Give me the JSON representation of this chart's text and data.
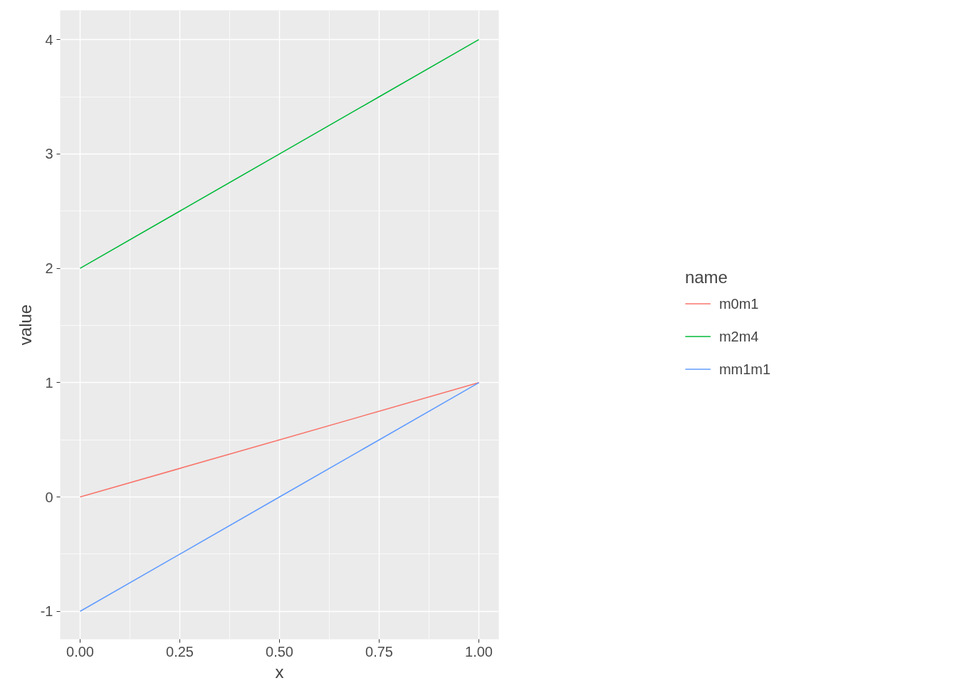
{
  "chart_data": {
    "type": "line",
    "xlabel": "x",
    "ylabel": "value",
    "legend_title": "name",
    "x": [
      0,
      0.25,
      0.5,
      0.75,
      1
    ],
    "series": [
      {
        "name": "m0m1",
        "color": "#f8766d",
        "values": [
          0,
          0.25,
          0.5,
          0.75,
          1
        ]
      },
      {
        "name": "m2m4",
        "color": "#00ba38",
        "values": [
          2,
          2.5,
          3,
          3.5,
          4
        ]
      },
      {
        "name": "mm1m1",
        "color": "#619cff",
        "values": [
          -1,
          -0.5,
          0,
          0.5,
          1
        ]
      }
    ],
    "xlim": [
      -0.05,
      1.05
    ],
    "ylim": [
      -1.244,
      4.256
    ],
    "xticks": [
      {
        "value": 0,
        "label": "0.00"
      },
      {
        "value": 0.25,
        "label": "0.25"
      },
      {
        "value": 0.5,
        "label": "0.50"
      },
      {
        "value": 0.75,
        "label": "0.75"
      },
      {
        "value": 1,
        "label": "1.00"
      }
    ],
    "yticks": [
      -1,
      0,
      1,
      2,
      3,
      4
    ],
    "grid": true,
    "legend": "right",
    "marker": "none",
    "line_style": "solid"
  }
}
